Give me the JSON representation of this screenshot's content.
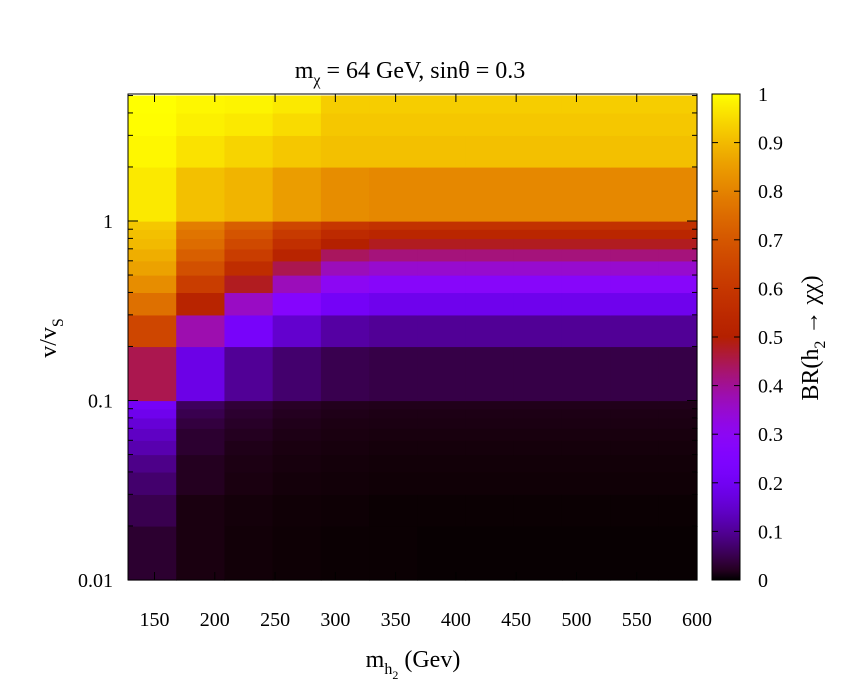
{
  "chart_data": {
    "type": "heatmap",
    "title": {
      "m": "m",
      "m_sub": "χ",
      "rest": " = 64 GeV, sin",
      "theta": "θ",
      "end": " = 0.3"
    },
    "xlabel": {
      "main": "m",
      "sub": "h",
      "subsub": "2",
      "rest": " (Gev)"
    },
    "ylabel": {
      "main": "v/v",
      "sub": "S"
    },
    "colorbar_label": {
      "pre": "BR(h",
      "sub": "2",
      "arrow": " → ",
      "post": "χχ)"
    },
    "x_ticks": [
      "150",
      "200",
      "250",
      "300",
      "350",
      "400",
      "450",
      "500",
      "550",
      "600"
    ],
    "x_tick_values": [
      150,
      200,
      250,
      300,
      350,
      400,
      450,
      500,
      550,
      600
    ],
    "xlim": [
      128,
      600
    ],
    "y_ticks": [
      "0.01",
      "0.1",
      "1"
    ],
    "y_tick_values": [
      0.01,
      0.1,
      1
    ],
    "ylim": [
      0.01,
      5
    ],
    "y_scale": "log",
    "colorbar_ticks": [
      "0",
      "0.1",
      "0.2",
      "0.3",
      "0.4",
      "0.5",
      "0.6",
      "0.7",
      "0.8",
      "0.9",
      "1"
    ],
    "colorbar_tick_values": [
      0,
      0.1,
      0.2,
      0.3,
      0.4,
      0.5,
      0.6,
      0.7,
      0.8,
      0.9,
      1
    ],
    "zlim": [
      0,
      1
    ],
    "colormap": "gnuplot-pm3d-bmy",
    "x_bin_edges": [
      128,
      168,
      208,
      248,
      288,
      328,
      368,
      408,
      448,
      488,
      528,
      568,
      600
    ],
    "y_bin_edges": [
      0.01,
      0.02,
      0.03,
      0.04,
      0.05,
      0.06,
      0.07,
      0.08,
      0.09,
      0.1,
      0.2,
      0.3,
      0.4,
      0.5,
      0.6,
      0.7,
      0.8,
      0.9,
      1,
      2,
      3,
      4,
      5
    ],
    "values": [
      [
        0.03,
        0.01,
        0.005,
        0.003,
        0.002,
        0.002,
        0.001,
        0.001,
        0.001,
        0.001,
        0.001,
        0.001
      ],
      [
        0.05,
        0.01,
        0.006,
        0.004,
        0.003,
        0.002,
        0.002,
        0.002,
        0.002,
        0.002,
        0.002,
        0.002
      ],
      [
        0.07,
        0.02,
        0.01,
        0.006,
        0.005,
        0.004,
        0.004,
        0.004,
        0.004,
        0.004,
        0.004,
        0.004
      ],
      [
        0.09,
        0.02,
        0.012,
        0.008,
        0.006,
        0.005,
        0.005,
        0.005,
        0.005,
        0.005,
        0.005,
        0.005
      ],
      [
        0.12,
        0.03,
        0.015,
        0.01,
        0.008,
        0.007,
        0.007,
        0.007,
        0.007,
        0.007,
        0.007,
        0.007
      ],
      [
        0.14,
        0.03,
        0.02,
        0.013,
        0.01,
        0.009,
        0.009,
        0.009,
        0.009,
        0.009,
        0.009,
        0.009
      ],
      [
        0.16,
        0.04,
        0.025,
        0.016,
        0.012,
        0.011,
        0.011,
        0.011,
        0.011,
        0.011,
        0.011,
        0.011
      ],
      [
        0.19,
        0.05,
        0.03,
        0.02,
        0.015,
        0.013,
        0.013,
        0.013,
        0.013,
        0.013,
        0.013,
        0.013
      ],
      [
        0.21,
        0.06,
        0.035,
        0.024,
        0.018,
        0.016,
        0.016,
        0.016,
        0.016,
        0.016,
        0.016,
        0.016
      ],
      [
        0.45,
        0.18,
        0.1,
        0.07,
        0.05,
        0.045,
        0.045,
        0.045,
        0.045,
        0.045,
        0.045,
        0.045
      ],
      [
        0.65,
        0.38,
        0.22,
        0.15,
        0.11,
        0.1,
        0.1,
        0.1,
        0.1,
        0.1,
        0.1,
        0.1
      ],
      [
        0.76,
        0.52,
        0.36,
        0.27,
        0.21,
        0.19,
        0.19,
        0.19,
        0.19,
        0.19,
        0.19,
        0.19
      ],
      [
        0.82,
        0.62,
        0.48,
        0.37,
        0.3,
        0.28,
        0.28,
        0.28,
        0.28,
        0.28,
        0.28,
        0.28
      ],
      [
        0.86,
        0.68,
        0.56,
        0.45,
        0.37,
        0.35,
        0.35,
        0.35,
        0.35,
        0.35,
        0.35,
        0.35
      ],
      [
        0.88,
        0.72,
        0.62,
        0.52,
        0.44,
        0.42,
        0.42,
        0.42,
        0.42,
        0.42,
        0.42,
        0.42
      ],
      [
        0.9,
        0.75,
        0.66,
        0.57,
        0.5,
        0.48,
        0.48,
        0.48,
        0.48,
        0.48,
        0.48,
        0.48
      ],
      [
        0.91,
        0.77,
        0.69,
        0.61,
        0.55,
        0.53,
        0.53,
        0.53,
        0.53,
        0.53,
        0.53,
        0.53
      ],
      [
        0.92,
        0.79,
        0.72,
        0.65,
        0.6,
        0.58,
        0.58,
        0.58,
        0.58,
        0.58,
        0.58,
        0.58
      ],
      [
        0.97,
        0.91,
        0.89,
        0.85,
        0.82,
        0.81,
        0.81,
        0.81,
        0.81,
        0.81,
        0.81,
        0.81
      ],
      [
        0.99,
        0.96,
        0.94,
        0.92,
        0.91,
        0.91,
        0.91,
        0.91,
        0.91,
        0.91,
        0.91,
        0.91
      ],
      [
        0.998,
        0.98,
        0.97,
        0.95,
        0.92,
        0.92,
        0.92,
        0.92,
        0.92,
        0.92,
        0.92,
        0.92
      ],
      [
        1.0,
        0.99,
        0.985,
        0.97,
        0.93,
        0.93,
        0.93,
        0.93,
        0.93,
        0.93,
        0.93,
        0.93
      ]
    ]
  }
}
